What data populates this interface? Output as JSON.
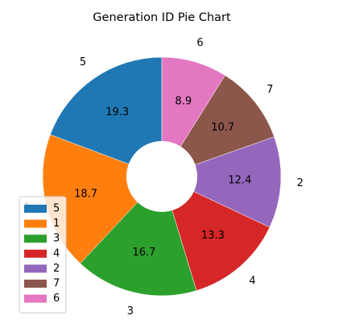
{
  "chart_data": {
    "type": "pie",
    "title": "Generation ID Pie Chart",
    "donut": true,
    "start_angle_deg": 90,
    "direction": "counterclockwise",
    "slices": [
      {
        "label": "5",
        "value": 19.3,
        "display": "19.3",
        "color": "#1f77b4"
      },
      {
        "label": "1",
        "value": 18.7,
        "display": "18.7",
        "color": "#ff7f0e"
      },
      {
        "label": "3",
        "value": 16.7,
        "display": "16.7",
        "color": "#2ca02c"
      },
      {
        "label": "4",
        "value": 13.3,
        "display": "13.3",
        "color": "#d62728"
      },
      {
        "label": "2",
        "value": 12.4,
        "display": "12.4",
        "color": "#9467bd"
      },
      {
        "label": "7",
        "value": 10.7,
        "display": "10.7",
        "color": "#8c564b"
      },
      {
        "label": "6",
        "value": 8.9,
        "display": "8.9",
        "color": "#e377c2"
      }
    ],
    "legend": {
      "placement": "lower-left",
      "entries": [
        "5",
        "1",
        "3",
        "4",
        "2",
        "7",
        "6"
      ]
    }
  }
}
